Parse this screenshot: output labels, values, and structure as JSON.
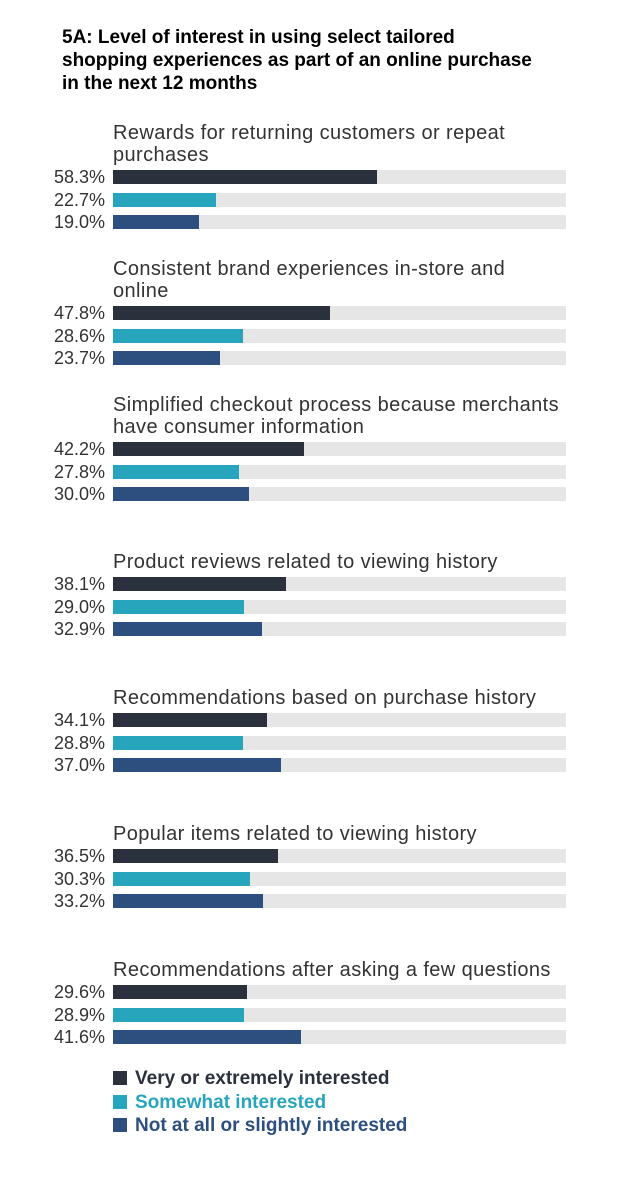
{
  "chart_data": {
    "type": "bar",
    "orientation": "horizontal",
    "title": "5A: Level of interest in using select tailored shopping experiences as part of an online purchase in the next 12 months",
    "categories": [
      "Rewards for returning customers or repeat purchases",
      "Consistent brand experiences in-store and online",
      "Simplified checkout process because merchants have consumer information",
      "Product reviews related to viewing history",
      "Recommendations based on purchase history",
      "Popular items related to viewing history",
      "Recommendations after asking a few questions"
    ],
    "xlim": [
      0,
      100
    ],
    "series": [
      {
        "name": "Very or extremely interested",
        "color": "#2b313c",
        "values": [
          58.3,
          47.8,
          42.2,
          38.1,
          34.1,
          36.5,
          29.6
        ],
        "value_labels": [
          "58.3%",
          "47.8%",
          "42.2%",
          "38.1%",
          "34.1%",
          "36.5%",
          "29.6%"
        ]
      },
      {
        "name": "Somewhat interested",
        "color": "#27a5bc",
        "values": [
          22.7,
          28.6,
          27.8,
          29.0,
          28.8,
          30.3,
          28.9
        ],
        "value_labels": [
          "22.7%",
          "28.6%",
          "27.8%",
          "29.0%",
          "28.8%",
          "30.3%",
          "28.9%"
        ]
      },
      {
        "name": "Not at all or slightly interested",
        "color": "#2d4f7f",
        "values": [
          19.0,
          23.7,
          30.0,
          32.9,
          37.0,
          33.2,
          41.6
        ],
        "value_labels": [
          "19.0%",
          "23.7%",
          "30.0%",
          "32.9%",
          "37.0%",
          "33.2%",
          "41.6%"
        ]
      }
    ]
  }
}
